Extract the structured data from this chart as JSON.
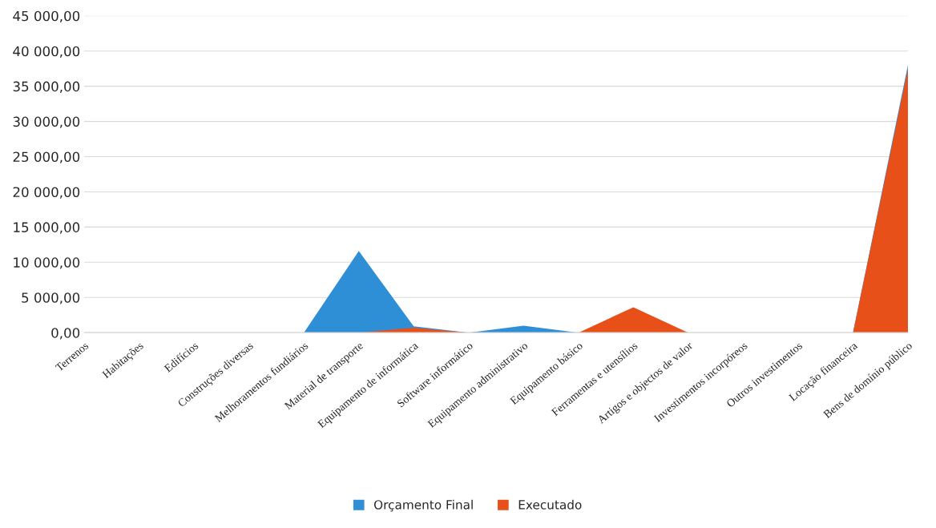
{
  "chart_data": {
    "type": "area",
    "categories": [
      "Terrenos",
      "Habitações",
      "Edifícios",
      "Construções diversas",
      "Melhoramentos fundiários",
      "Material de transporte",
      "Equipamento de informática",
      "Software informático",
      "Equipamento administrativo",
      "Equipamento básico",
      "Ferramentas e utensílios",
      "Artigos e objectos de valor",
      "Investimentos incorpóreos",
      "Outros investimentos",
      "Locação financeira",
      "Bens de domínio público"
    ],
    "series": [
      {
        "name": "Orçamento Final",
        "color": "#2e8fd6",
        "values": [
          0,
          0,
          0,
          0,
          0,
          11600,
          900,
          0,
          1000,
          0,
          0,
          0,
          0,
          0,
          0,
          38000
        ]
      },
      {
        "name": "Executado",
        "color": "#e8501a",
        "values": [
          0,
          0,
          0,
          0,
          0,
          0,
          700,
          0,
          0,
          0,
          3600,
          0,
          0,
          0,
          0,
          37500
        ]
      }
    ],
    "ylim": [
      0,
      45000
    ],
    "yticks": [
      {
        "value": 0,
        "label": "0,00"
      },
      {
        "value": 5000,
        "label": "5 000,00"
      },
      {
        "value": 10000,
        "label": "10 000,00"
      },
      {
        "value": 15000,
        "label": "15 000,00"
      },
      {
        "value": 20000,
        "label": "20 000,00"
      },
      {
        "value": 25000,
        "label": "25 000,00"
      },
      {
        "value": 30000,
        "label": "30 000,00"
      },
      {
        "value": 35000,
        "label": "35 000,00"
      },
      {
        "value": 40000,
        "label": "40 000,00"
      },
      {
        "value": 45000,
        "label": "45 000,00"
      }
    ],
    "grid": "y",
    "legend": "bottom"
  }
}
